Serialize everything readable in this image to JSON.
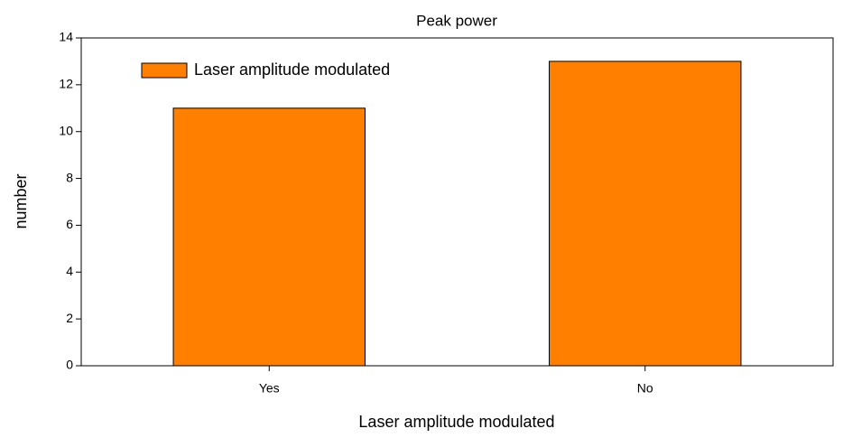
{
  "chart_data": {
    "type": "bar",
    "title": "Peak power",
    "x_label": "Laser amplitude modulated",
    "y_label": "number",
    "categories": [
      "Yes",
      "No"
    ],
    "series": [
      {
        "name": "Laser amplitude modulated",
        "color": "#ff8000",
        "values": [
          11,
          13
        ]
      }
    ],
    "ylim": [
      0,
      14
    ],
    "yticks": [
      0,
      2,
      4,
      6,
      8,
      10,
      12,
      14
    ],
    "grid": false,
    "legend": "upper left"
  }
}
